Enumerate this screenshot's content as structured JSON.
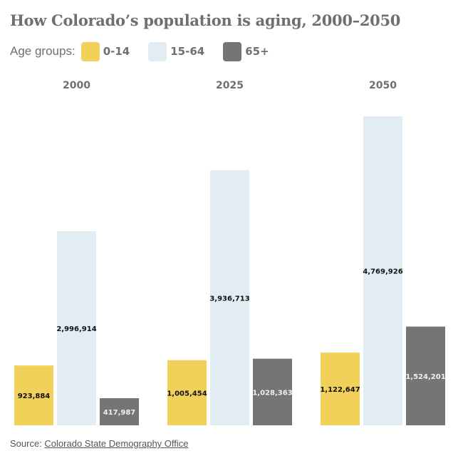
{
  "chart_data": {
    "type": "bar",
    "title": "How Colorado’s population is aging, 2000–2050",
    "legend_label": "Age groups:",
    "legend_placement": "top-left",
    "categories": [
      "2000",
      "2025",
      "2050"
    ],
    "series": [
      {
        "name": "0-14",
        "color": "#f2d15a",
        "label_color": "#111111",
        "values": [
          923884,
          1005454,
          1122647
        ],
        "labels": [
          "923,884",
          "1,005,454",
          "1,122,647"
        ]
      },
      {
        "name": "15-64",
        "color": "#e1ecf3",
        "label_color": "#111111",
        "values": [
          2996914,
          3936713,
          4769926
        ],
        "labels": [
          "2,996,914",
          "3,936,713",
          "4,769,926"
        ]
      },
      {
        "name": "65+",
        "color": "#757575",
        "label_color": "#f0f0f0",
        "values": [
          417987,
          1028363,
          1524201
        ],
        "labels": [
          "417,987",
          "1,028,363",
          "1,524,201"
        ]
      }
    ],
    "ylim": [
      0,
      4769926
    ],
    "xlabel": "",
    "ylabel": "",
    "grid": false
  },
  "source": {
    "prefix": "Source: ",
    "link_text": "Colorado State Demography Office"
  }
}
